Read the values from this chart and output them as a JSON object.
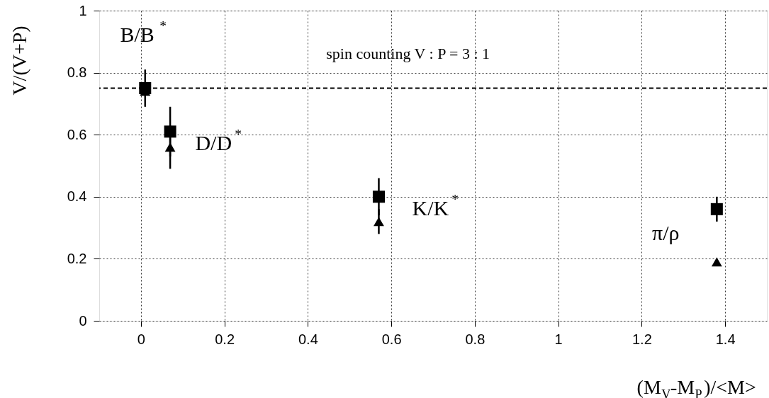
{
  "chart_data": {
    "type": "scatter",
    "xlabel": "(M$_{V}$-M$_{P}$)/<M>",
    "ylabel": "V/(V+P)",
    "x": [
      0.01,
      0.07,
      0.57,
      1.38
    ],
    "series": [
      {
        "color": "#000000",
        "marker": "square",
        "values": [
          0.75,
          0.61,
          0.4,
          0.36
        ],
        "errors": [
          0.06,
          0.08,
          0.06,
          0.04
        ]
      },
      {
        "color": "#000000",
        "marker": "triangle",
        "values": [
          0.74,
          0.56,
          0.32,
          0.19
        ],
        "errors": [
          null,
          0.07,
          0.04,
          null
        ]
      }
    ],
    "xlim": [
      -0.1,
      1.5
    ],
    "ylim": [
      0,
      1
    ],
    "xticks": [
      0,
      0.2,
      0.4,
      0.6,
      0.8,
      1,
      1.2,
      1.4
    ],
    "yticks": [
      0,
      0.2,
      0.4,
      0.6,
      0.8,
      1
    ],
    "grid": true,
    "ref_lines": [
      {
        "axis": "y",
        "value": 0.75,
        "line_style": "dashed",
        "color": "#000000",
        "label": "spin counting   V : P  =  3 : 1"
      }
    ],
    "annotations": [
      "B/B$^{*}$",
      "D/D$^{*}$",
      "K/K$^{*}$",
      "π/ρ"
    ]
  }
}
